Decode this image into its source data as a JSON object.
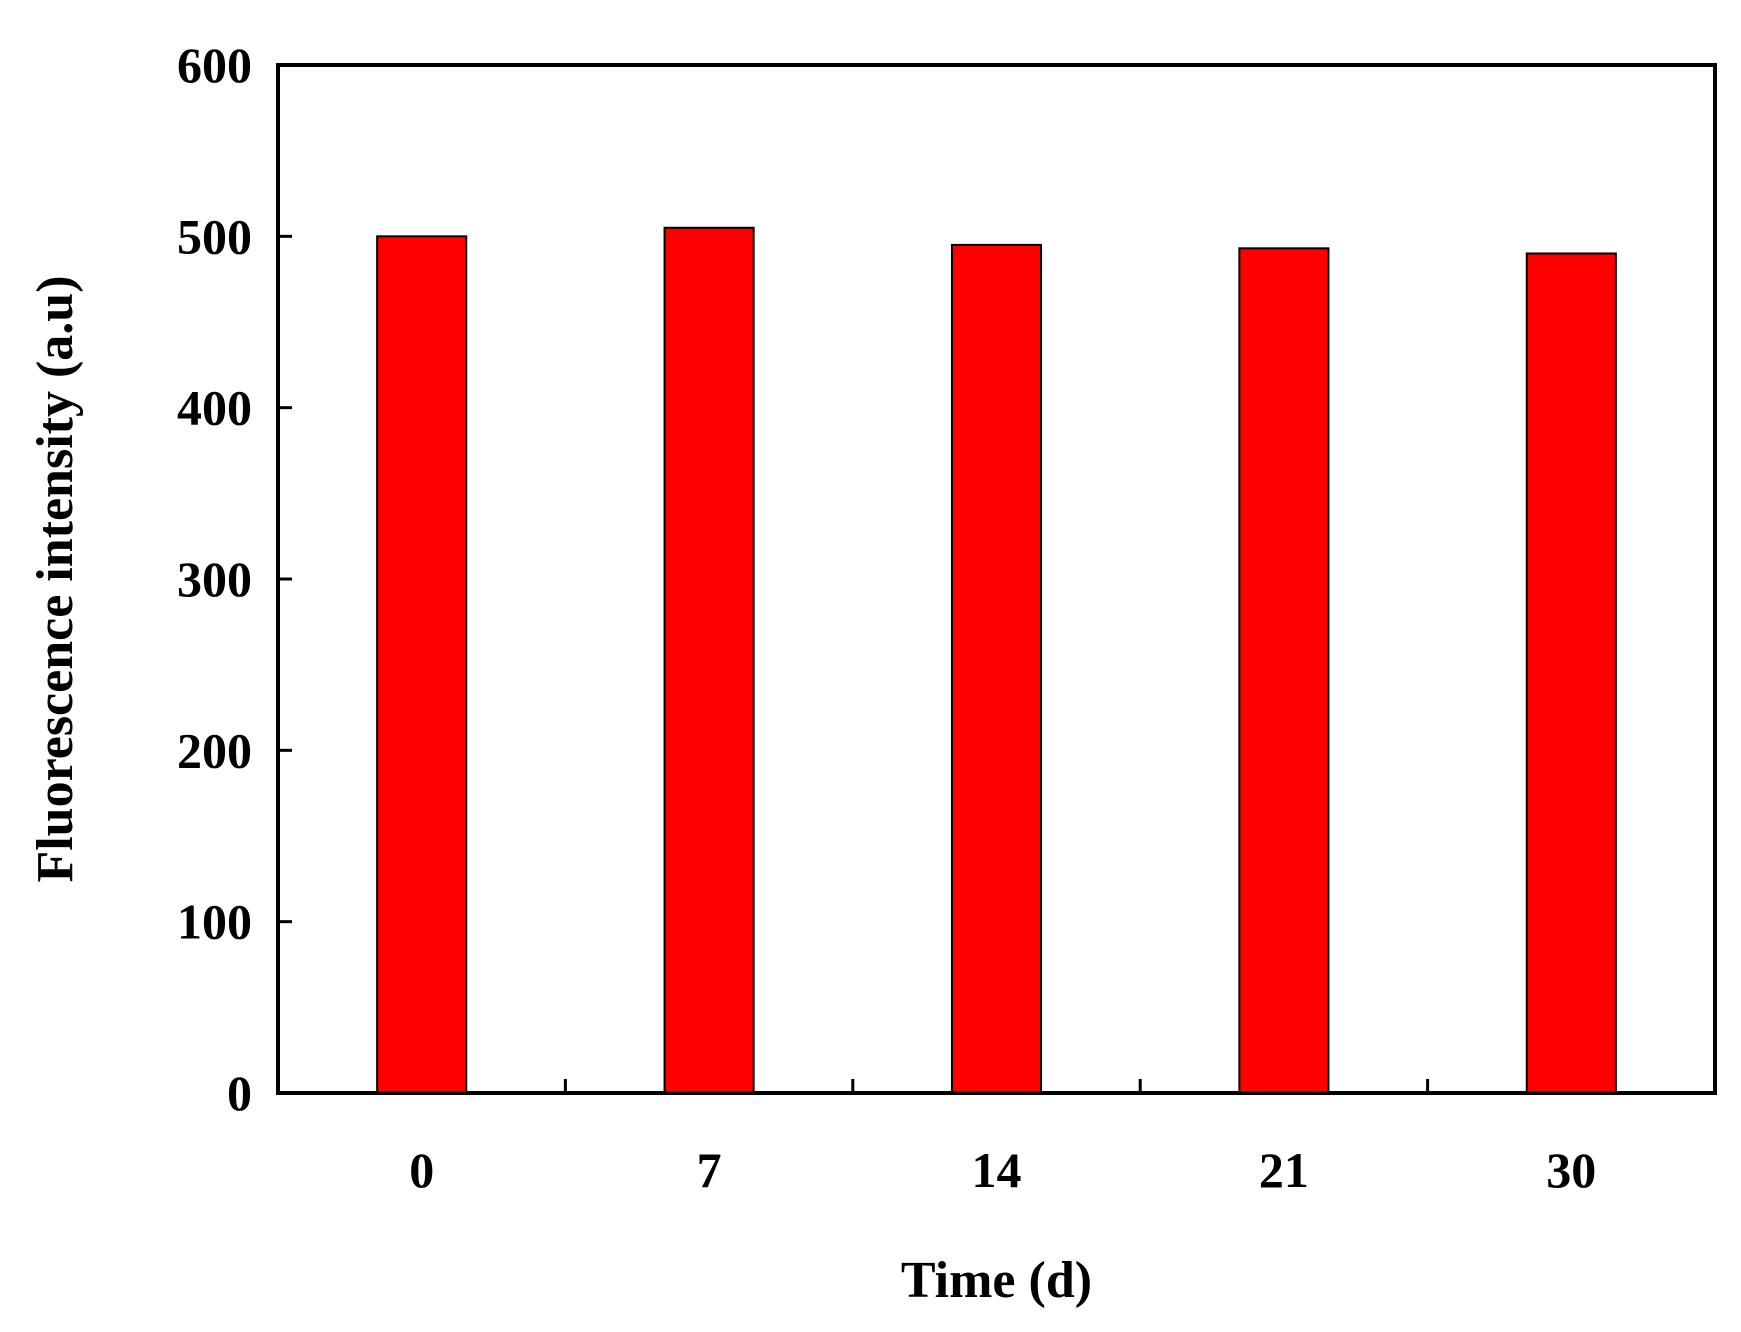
{
  "chart_data": {
    "type": "bar",
    "title": "",
    "xlabel": "Time (d)",
    "ylabel": "Fluorescence intensity (a.u)",
    "categories": [
      "0",
      "7",
      "14",
      "21",
      "30"
    ],
    "values": [
      500,
      505,
      495,
      493,
      490
    ],
    "ylim": [
      0,
      600
    ],
    "yticks": [
      "0",
      "100",
      "200",
      "300",
      "400",
      "500",
      "600"
    ],
    "grid": false,
    "legend": "none",
    "colors": {
      "bar_fill": "#ff0000",
      "bar_stroke": "#000000",
      "axis": "#000000",
      "background": "#ffffff"
    }
  }
}
